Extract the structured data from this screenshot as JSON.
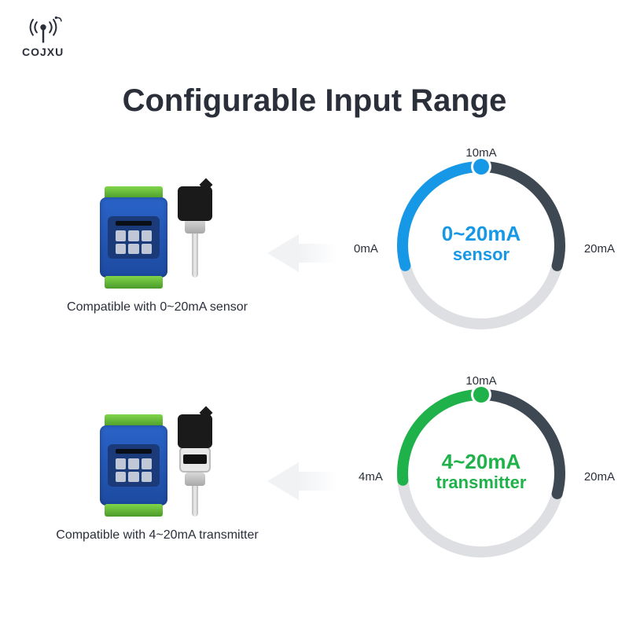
{
  "brand": "COJXU",
  "title": "Configurable Input Range",
  "rows": [
    {
      "caption": "Compatible with 0~20mA sensor",
      "range_text": "0~20mA",
      "sub_text": "sensor",
      "accent": "#1698e6",
      "accent_dark": "#3d4852",
      "track": "#dedfe2",
      "top_label": "10mA",
      "left_label": "0mA",
      "right_label": "20mA",
      "arc_start_deg": 165,
      "arc_mid_deg": 270,
      "arc_end_deg": 15,
      "has_display": false
    },
    {
      "caption": "Compatible with 4~20mA transmitter",
      "range_text": "4~20mA",
      "sub_text": "transmitter",
      "accent": "#1fb24a",
      "accent_dark": "#3d4852",
      "track": "#dedfe2",
      "top_label": "10mA",
      "left_label": "4mA",
      "right_label": "20mA",
      "arc_start_deg": 175,
      "arc_mid_deg": 270,
      "arc_end_deg": 15,
      "has_display": true
    }
  ],
  "style": {
    "title_color": "#2a2f3a",
    "text_color": "#2a2f3a",
    "bg": "#ffffff",
    "stroke_width": 14,
    "dot_radius": 10,
    "gauge_r": 100
  }
}
